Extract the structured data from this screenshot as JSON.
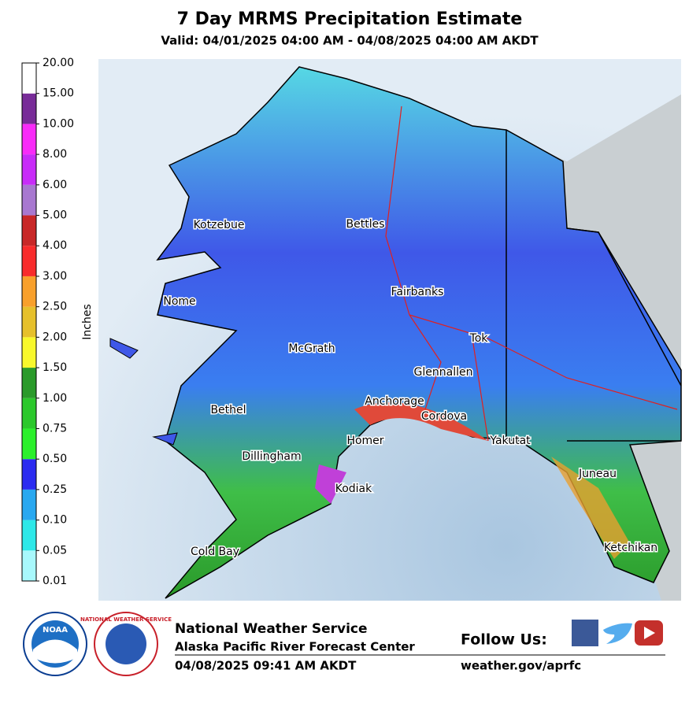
{
  "header": {
    "title": "7 Day MRMS Precipitation Estimate",
    "subtitle": "Valid: 04/01/2025 04:00 AM - 04/08/2025 04:00 AM AKDT"
  },
  "colorbar": {
    "axis_label": "Inches",
    "labels": [
      "0.01",
      "0.05",
      "0.10",
      "0.25",
      "0.50",
      "0.75",
      "1.00",
      "1.50",
      "2.00",
      "2.50",
      "3.00",
      "4.00",
      "5.00",
      "6.00",
      "8.00",
      "10.00",
      "15.00",
      "20.00"
    ],
    "colors": [
      "#a8f8fc",
      "#2ee8e8",
      "#29a8f0",
      "#2c2cf0",
      "#2cf02c",
      "#2cc82c",
      "#2a9a2a",
      "#f8f82c",
      "#e6c02c",
      "#f8a02c",
      "#f82c2c",
      "#c82828",
      "#a878d0",
      "#c82cf8",
      "#f82cf8",
      "#782c98",
      "#ffffff"
    ]
  },
  "map": {
    "cities": [
      "Kotzebue",
      "Bettles",
      "Nome",
      "Fairbanks",
      "Tok",
      "McGrath",
      "Glennallen",
      "Anchorage",
      "Bethel",
      "Cordova",
      "Homer",
      "Yakutat",
      "Dillingham",
      "Juneau",
      "Kodiak",
      "Ketchikan",
      "Cold Bay"
    ]
  },
  "footer": {
    "noaa": "NOAA",
    "nws_ring": "NATIONAL WEATHER SERVICE",
    "org": "National Weather Service",
    "office": "Alaska Pacific River Forecast Center",
    "timestamp": "04/08/2025 09:41 AM AKDT",
    "follow": "Follow Us:",
    "url": "weather.gov/aprfc"
  }
}
